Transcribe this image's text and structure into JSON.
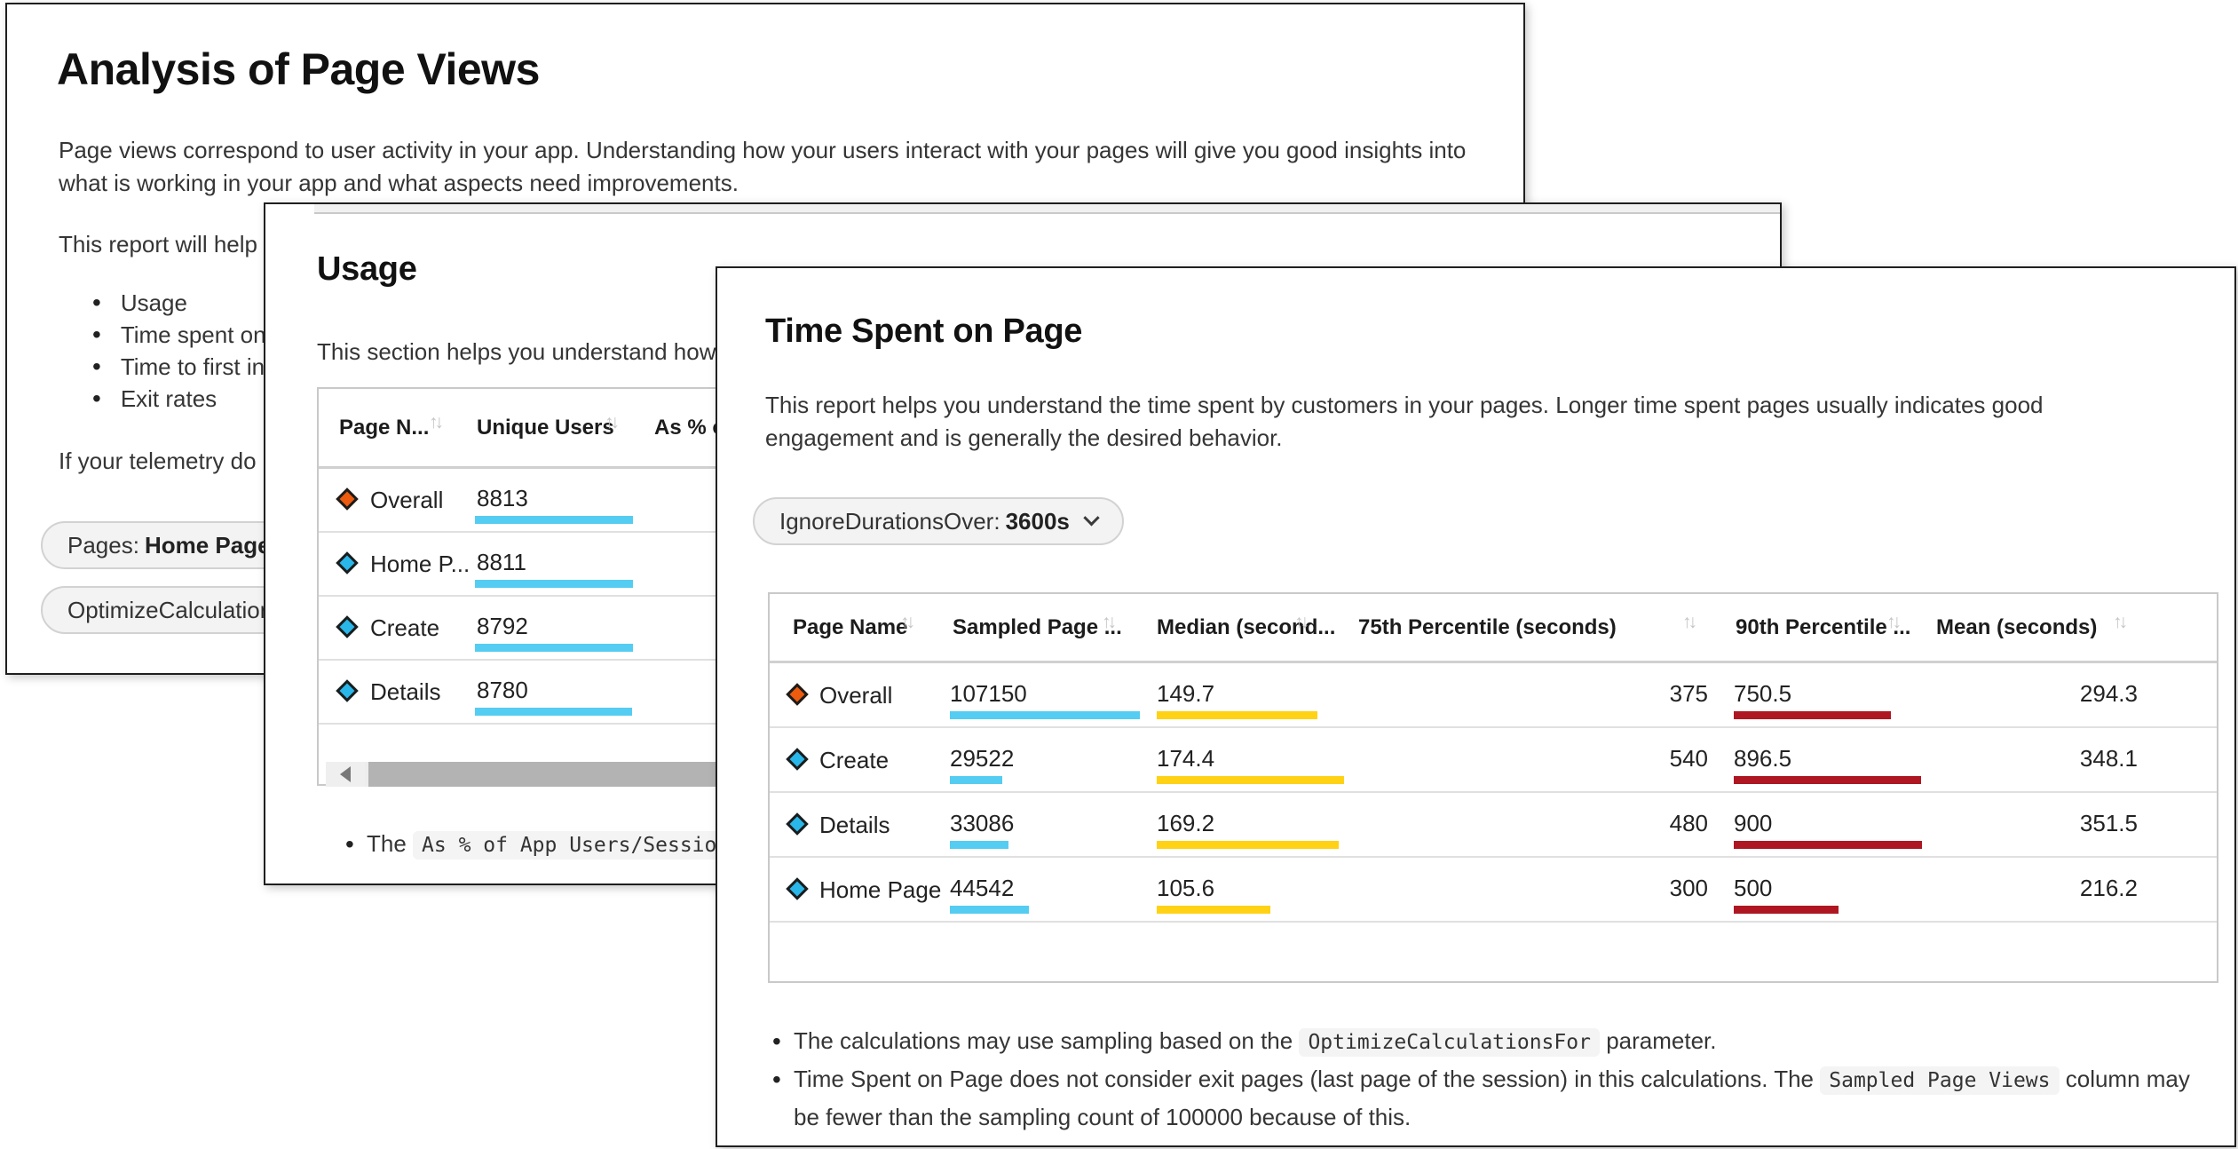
{
  "icons": {
    "sort": "↑↓"
  },
  "colors": {
    "bar_cyan": "#55CDF2",
    "bar_yellow": "#FFD215",
    "bar_red": "#AE1722",
    "diamond_orange": "#EC5B0E",
    "diamond_cyan": "#29B7EA"
  },
  "back_window": {
    "title": "Analysis of Page Views",
    "intro": "Page views correspond to user activity in your app. Understanding how your users interact with your pages will give you good insights into what is working in your app and what aspects need improvements.",
    "report_intro": "This report will help",
    "bullets": {
      "b0": "Usage",
      "b1": "Time spent on p",
      "b2": "Time to first int",
      "b3": "Exit rates"
    },
    "telemetry_note": "If your telemetry do",
    "pages_pill": {
      "label": "Pages:",
      "value": "Home Page, D"
    },
    "optimize_pill": {
      "label": "OptimizeCalculations"
    }
  },
  "usage_window": {
    "title": "Usage",
    "description": "This section helps you understand how",
    "table": {
      "col_page": "Page N...",
      "col_users": "Unique Users",
      "col_pct": "As % of",
      "rows": [
        {
          "name": "Overall",
          "users": "8813",
          "color": "#EC5B0E"
        },
        {
          "name": "Home P...",
          "users": "8811",
          "color": "#29B7EA"
        },
        {
          "name": "Create",
          "users": "8792",
          "color": "#29B7EA"
        },
        {
          "name": "Details",
          "users": "8780",
          "color": "#29B7EA"
        }
      ]
    },
    "note": {
      "prefix": "The",
      "code": "As % of App Users/Sessions/V"
    }
  },
  "time_window": {
    "title": "Time Spent on Page",
    "description": "This report helps you understand the time spent by customers in your pages. Longer time spent pages usually indicates good engagement and is generally the desired behavior.",
    "duration_pill": {
      "label": "IgnoreDurationsOver:",
      "value": "3600s"
    },
    "table": {
      "col_page": "Page Name",
      "col_sampled": "Sampled Page ...",
      "col_median": "Median (second...",
      "col_p75": "75th Percentile (seconds)",
      "col_p90": "90th Percentile ...",
      "col_mean": "Mean (seconds)",
      "rows": [
        {
          "name": "Overall",
          "sampled": "107150",
          "median": "149.7",
          "p75": "375",
          "p90": "750.5",
          "mean": "294.3",
          "color": "#EC5B0E"
        },
        {
          "name": "Create",
          "sampled": "29522",
          "median": "174.4",
          "p75": "540",
          "p90": "896.5",
          "mean": "348.1",
          "color": "#29B7EA"
        },
        {
          "name": "Details",
          "sampled": "33086",
          "median": "169.2",
          "p75": "480",
          "p90": "900",
          "mean": "351.5",
          "color": "#29B7EA"
        },
        {
          "name": "Home Page",
          "sampled": "44542",
          "median": "105.6",
          "p75": "300",
          "p90": "500",
          "mean": "216.2",
          "color": "#29B7EA"
        }
      ]
    },
    "notes": {
      "n1": {
        "prefix": "The calculations may use sampling based on the",
        "code": "OptimizeCalculationsFor",
        "suffix": "parameter."
      },
      "n2": {
        "prefix": "Time Spent on Page does not consider exit pages (last page of the session) in this calculations. The",
        "code": "Sampled Page Views",
        "suffix": "column may be fewer than the sampling count of 100000 because of this."
      }
    }
  }
}
